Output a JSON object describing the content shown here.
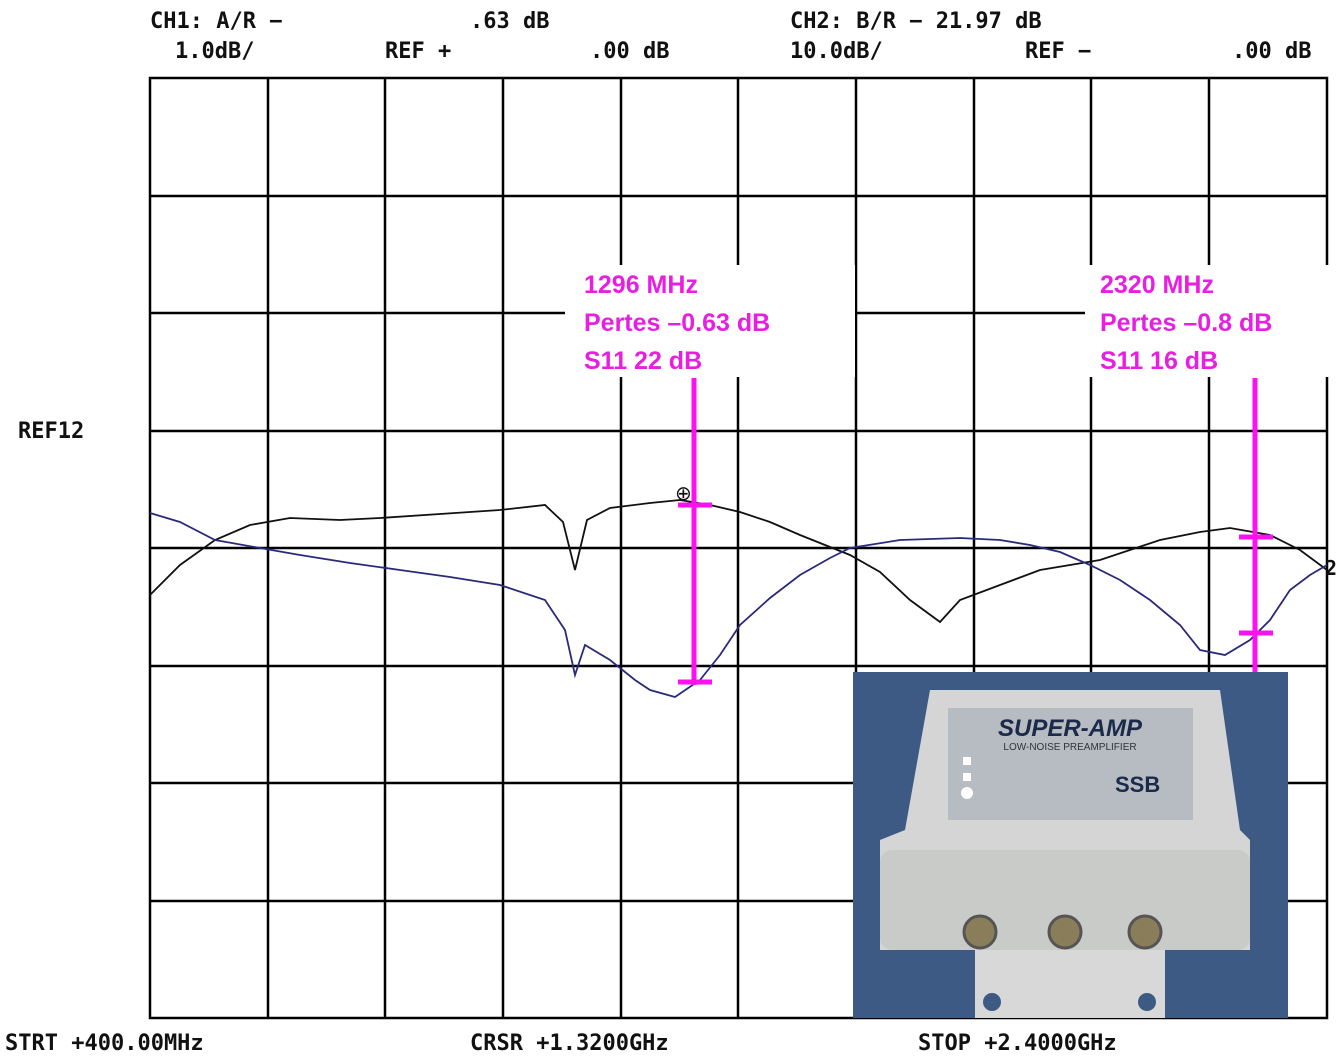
{
  "header": {
    "ch1_label": "CH1: A/R −",
    "ch1_value": ".63 dB",
    "ch2_label": "CH2: B/R − 21.97 dB",
    "ch1_scale": "1.0dB/",
    "ch1_ref": "REF +",
    "ch1_ref_value": ".00 dB",
    "ch2_scale": "10.0dB/",
    "ch2_ref": "REF −",
    "ch2_ref_value": ".00 dB"
  },
  "side_label": "REF12",
  "annotations": [
    {
      "lines": [
        "1296 MHz",
        "Pertes –0.63 dB",
        "S11 22 dB"
      ]
    },
    {
      "lines": [
        "2320 MHz",
        "Pertes –0.8 dB",
        "S11 16 dB"
      ]
    }
  ],
  "footer": {
    "start": "STRT +400.00MHz",
    "cursor": "CRSR +1.3200GHz",
    "stop": "STOP +2.4000GHz"
  },
  "photo": {
    "title": "SUPER-AMP",
    "subtitle": "LOW-NOISE PREAMPLIFIER",
    "brand": "SSB"
  }
}
